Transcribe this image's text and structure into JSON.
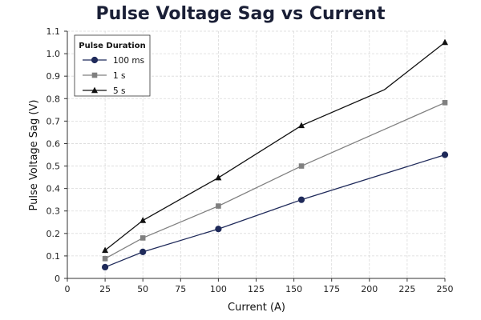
{
  "chart_data": {
    "type": "line",
    "title": "Pulse Voltage Sag vs Current",
    "xlabel": "Current (A)",
    "ylabel": "Pulse Voltage Sag (V)",
    "xlim": [
      0,
      250
    ],
    "ylim": [
      0,
      1.1
    ],
    "xticks": [
      0,
      25,
      50,
      75,
      100,
      125,
      150,
      175,
      200,
      225,
      250
    ],
    "yticks": [
      0,
      0.1,
      0.2,
      0.3,
      0.4,
      0.5,
      0.6,
      0.7,
      0.8,
      0.9,
      1.0,
      1.1
    ],
    "xtick_labels": [
      "0",
      "25",
      "50",
      "75",
      "100",
      "125",
      "150",
      "175",
      "200",
      "225",
      "250"
    ],
    "ytick_labels": [
      "0",
      "0.1",
      "0.2",
      "0.3",
      "0.4",
      "0.5",
      "0.6",
      "0.7",
      "0.8",
      "0.9",
      "1.0",
      "1.1"
    ],
    "grid": true,
    "legend": {
      "title": "Pulse Duration",
      "position": "top-left"
    },
    "series": [
      {
        "name": "100 ms",
        "marker": "circle",
        "color": "#1f2a5a",
        "points": [
          [
            25,
            0.05
          ],
          [
            50,
            0.118
          ],
          [
            100,
            0.22
          ],
          [
            155,
            0.35
          ],
          [
            250,
            0.55
          ]
        ]
      },
      {
        "name": "1 s",
        "marker": "square",
        "color": "#808080",
        "points": [
          [
            25,
            0.088
          ],
          [
            50,
            0.18
          ],
          [
            100,
            0.322
          ],
          [
            155,
            0.5
          ],
          [
            250,
            0.782
          ]
        ]
      },
      {
        "name": "5 s",
        "marker": "triangle",
        "color": "#111111",
        "points": [
          [
            25,
            0.125
          ],
          [
            50,
            0.258
          ],
          [
            100,
            0.448
          ],
          [
            155,
            0.68
          ],
          [
            210,
            0.84
          ],
          [
            250,
            1.05
          ]
        ]
      }
    ]
  }
}
